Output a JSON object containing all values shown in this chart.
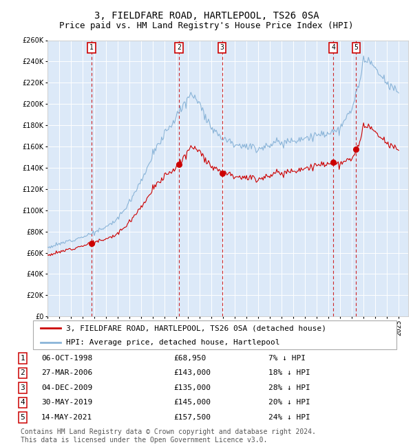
{
  "title": "3, FIELDFARE ROAD, HARTLEPOOL, TS26 0SA",
  "subtitle": "Price paid vs. HM Land Registry's House Price Index (HPI)",
  "ylim": [
    0,
    260000
  ],
  "yticks": [
    0,
    20000,
    40000,
    60000,
    80000,
    100000,
    120000,
    140000,
    160000,
    180000,
    200000,
    220000,
    240000,
    260000
  ],
  "background_color": "#dce9f8",
  "grid_color": "#ffffff",
  "legend_line1": "3, FIELDFARE ROAD, HARTLEPOOL, TS26 0SA (detached house)",
  "legend_line2": "HPI: Average price, detached house, Hartlepool",
  "transactions": [
    {
      "num": 1,
      "date": "06-OCT-1998",
      "price": 68950,
      "pct": "7%",
      "dir": "↓",
      "year": 1998.77
    },
    {
      "num": 2,
      "date": "27-MAR-2006",
      "price": 143000,
      "pct": "18%",
      "dir": "↓",
      "year": 2006.24
    },
    {
      "num": 3,
      "date": "04-DEC-2009",
      "price": 135000,
      "pct": "28%",
      "dir": "↓",
      "year": 2009.92
    },
    {
      "num": 4,
      "date": "30-MAY-2019",
      "price": 145000,
      "pct": "20%",
      "dir": "↓",
      "year": 2019.41
    },
    {
      "num": 5,
      "date": "14-MAY-2021",
      "price": 157500,
      "pct": "24%",
      "dir": "↓",
      "year": 2021.37
    }
  ],
  "footer": "Contains HM Land Registry data © Crown copyright and database right 2024.\nThis data is licensed under the Open Government Licence v3.0.",
  "hpi_color": "#8ab4d8",
  "price_color": "#cc0000",
  "marker_box_color": "#cc0000",
  "vline_color": "#cc0000",
  "title_fontsize": 10,
  "subtitle_fontsize": 9,
  "tick_fontsize": 7,
  "legend_fontsize": 8,
  "table_fontsize": 8,
  "footer_fontsize": 7,
  "hpi_control_x": [
    1995,
    1996,
    1997,
    1998,
    1999,
    2000,
    2001,
    2002,
    2003,
    2004,
    2005,
    2006,
    2007,
    2007.5,
    2008,
    2009,
    2010,
    2011,
    2012,
    2013,
    2014,
    2015,
    2016,
    2017,
    2018,
    2019,
    2020,
    2021,
    2021.5,
    2022,
    2022.5,
    2023,
    2024,
    2025
  ],
  "hpi_control_y": [
    65000,
    68000,
    72000,
    75000,
    79000,
    84000,
    92000,
    108000,
    128000,
    152000,
    172000,
    188000,
    205000,
    210000,
    200000,
    178000,
    168000,
    163000,
    160000,
    158000,
    162000,
    164000,
    166000,
    168000,
    170000,
    173000,
    176000,
    195000,
    215000,
    238000,
    242000,
    232000,
    218000,
    212000
  ],
  "noise_seed": 12,
  "noise_scale": 0.012
}
